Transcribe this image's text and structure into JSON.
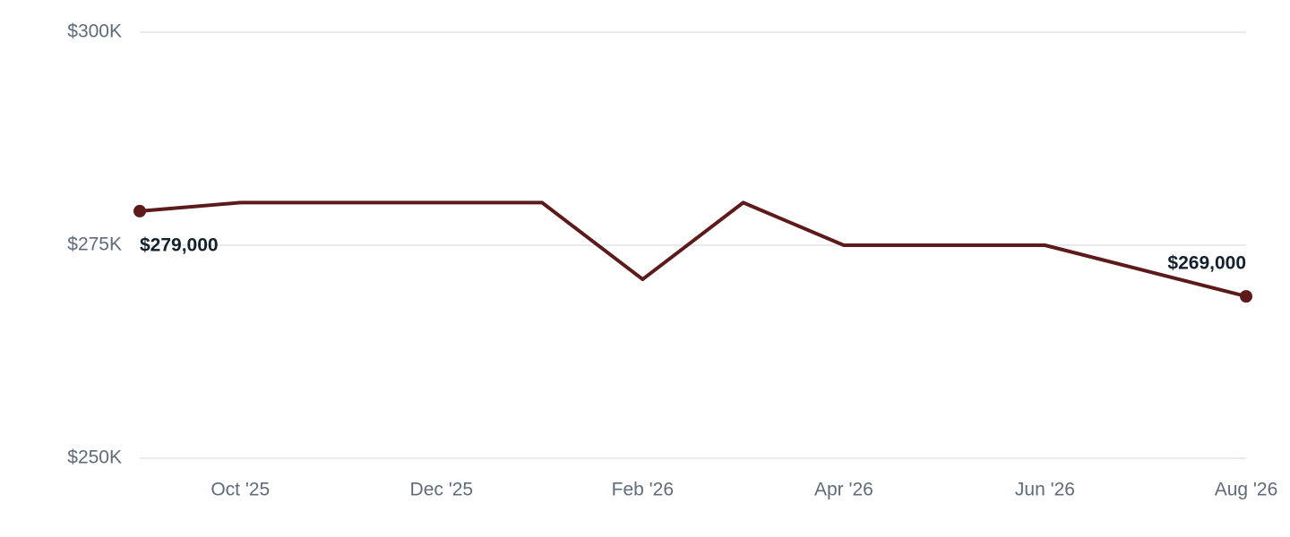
{
  "chart_data": {
    "type": "line",
    "categories": [
      null,
      "Oct '25",
      null,
      "Dec '25",
      null,
      "Feb '26",
      null,
      "Apr '26",
      null,
      "Jun '26",
      null,
      "Aug '26"
    ],
    "values": [
      279000,
      280000,
      280000,
      280000,
      280000,
      271000,
      280000,
      275000,
      275000,
      275000,
      272000,
      269000
    ],
    "value_labels": [
      "$279,000",
      null,
      null,
      null,
      null,
      null,
      null,
      null,
      null,
      null,
      null,
      "$269,000"
    ],
    "color": "#5c1a1a",
    "ylim": [
      250000,
      300000
    ],
    "yticks": [
      {
        "value": 250000,
        "label": "$250K"
      },
      {
        "value": 275000,
        "label": "$275K"
      },
      {
        "value": 300000,
        "label": "$300K"
      }
    ],
    "grid": true
  }
}
